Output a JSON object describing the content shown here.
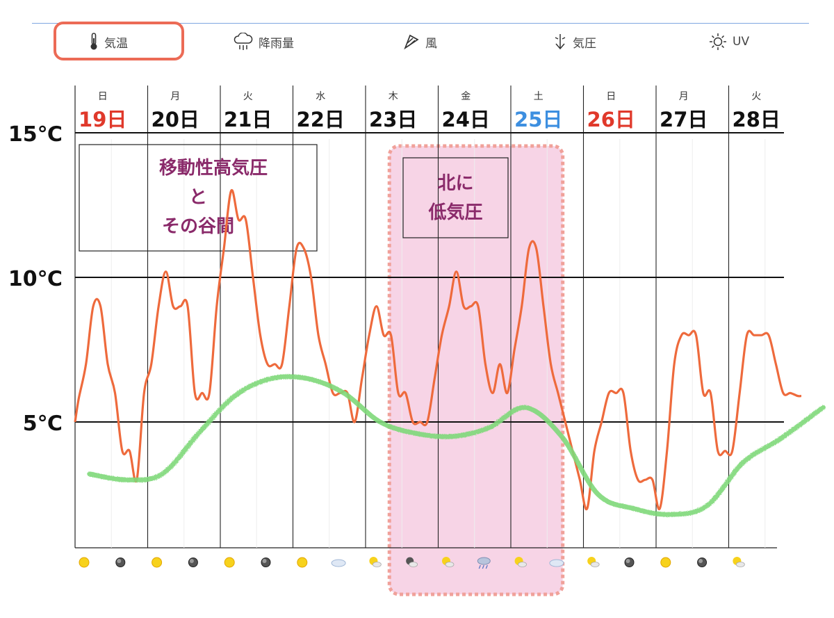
{
  "tabs": [
    {
      "id": "temperature",
      "label": "気温",
      "icon": "thermometer-icon",
      "selected": true
    },
    {
      "id": "rainfall",
      "label": "降雨量",
      "icon": "rain-cloud-icon",
      "selected": false
    },
    {
      "id": "wind",
      "label": "風",
      "icon": "wind-icon",
      "selected": false
    },
    {
      "id": "pressure",
      "label": "気圧",
      "icon": "pressure-arrow-icon",
      "selected": false
    },
    {
      "id": "uv",
      "label": "UV",
      "icon": "sun-icon",
      "selected": false
    }
  ],
  "colors": {
    "highlight": "#ec6b56",
    "temperature_line": "#ee6a3c",
    "trend_line": "#7fd97a",
    "sunday": "#e0392b",
    "saturday": "#3d8fe0",
    "weekday": "#111111",
    "annotation_text": "#8a2a6a",
    "period_fill": "#f7d4e6",
    "period_border": "#f0a19a"
  },
  "chart_data": {
    "type": "line",
    "y_unit": "℃",
    "ylim": [
      0,
      15
    ],
    "y_ticks": [
      {
        "value": 15,
        "label": "15℃"
      },
      {
        "value": 10,
        "label": "10℃"
      },
      {
        "value": 5,
        "label": "5℃"
      }
    ],
    "days": [
      {
        "weekday": "日",
        "date": "19日",
        "kind": "sunday"
      },
      {
        "weekday": "月",
        "date": "20日",
        "kind": "weekday"
      },
      {
        "weekday": "火",
        "date": "21日",
        "kind": "weekday"
      },
      {
        "weekday": "水",
        "date": "22日",
        "kind": "weekday"
      },
      {
        "weekday": "木",
        "date": "23日",
        "kind": "weekday"
      },
      {
        "weekday": "金",
        "date": "24日",
        "kind": "weekday"
      },
      {
        "weekday": "土",
        "date": "25日",
        "kind": "saturday"
      },
      {
        "weekday": "日",
        "date": "26日",
        "kind": "sunday"
      },
      {
        "weekday": "月",
        "date": "27日",
        "kind": "weekday"
      },
      {
        "weekday": "火",
        "date": "28日",
        "kind": "weekday"
      }
    ],
    "series": [
      {
        "key": "temperature",
        "x_day": [
          0,
          0.05,
          0.15,
          0.25,
          0.35,
          0.45,
          0.55,
          0.65,
          0.75,
          0.85,
          0.95,
          1.05,
          1.15,
          1.25,
          1.35,
          1.45,
          1.55,
          1.65,
          1.75,
          1.85,
          1.95,
          2.05,
          2.15,
          2.25,
          2.35,
          2.45,
          2.55,
          2.65,
          2.75,
          2.85,
          2.95,
          3.05,
          3.15,
          3.25,
          3.35,
          3.45,
          3.55,
          3.65,
          3.75,
          3.85,
          3.95,
          4.05,
          4.15,
          4.25,
          4.35,
          4.45,
          4.55,
          4.65,
          4.75,
          4.85,
          4.95,
          5.05,
          5.15,
          5.25,
          5.35,
          5.45,
          5.55,
          5.65,
          5.75,
          5.85,
          5.95,
          6.05,
          6.15,
          6.25,
          6.35,
          6.45,
          6.55,
          6.65,
          6.75,
          6.85,
          6.95,
          7.05,
          7.15,
          7.25,
          7.35,
          7.45,
          7.55,
          7.65,
          7.75,
          7.85,
          7.95,
          8.05,
          8.15,
          8.25,
          8.35,
          8.45,
          8.55,
          8.65,
          8.75,
          8.85,
          8.95,
          9.05,
          9.15,
          9.25,
          9.35,
          9.45,
          9.55,
          9.65,
          9.75,
          9.85,
          9.95,
          10.0
        ],
        "values": [
          5,
          5.8,
          7,
          9,
          9,
          7,
          6,
          4,
          4,
          3,
          6,
          7,
          9,
          10.2,
          9,
          9,
          9,
          6,
          6,
          6,
          9,
          11,
          13,
          12,
          12,
          10,
          8,
          7,
          7,
          7,
          9,
          11,
          11,
          10,
          8,
          7,
          6,
          6,
          6,
          5,
          6.5,
          8,
          9,
          8,
          8,
          6,
          6,
          5,
          5,
          5,
          6.5,
          8,
          9,
          10.2,
          9,
          9,
          9,
          7,
          6,
          7,
          6,
          7.5,
          9,
          11,
          11,
          9,
          7,
          6,
          5,
          4,
          3,
          2,
          4,
          5,
          6,
          6,
          6,
          4,
          3,
          3,
          3,
          2,
          4,
          7,
          8,
          8,
          8,
          6,
          6,
          4,
          4,
          4,
          6,
          8,
          8,
          8,
          8,
          7,
          6,
          6,
          5.9,
          5.9
        ]
      },
      {
        "key": "trend",
        "x_day": [
          0.2,
          0.7,
          1.2,
          1.7,
          2.2,
          2.7,
          3.2,
          3.7,
          4.2,
          4.7,
          5.2,
          5.7,
          6.2,
          6.7,
          7.2,
          7.7,
          8.2,
          8.7,
          9.2,
          9.7,
          10.3
        ],
        "values": [
          3.2,
          3.0,
          3.2,
          4.6,
          5.9,
          6.5,
          6.5,
          6.0,
          5.0,
          4.6,
          4.5,
          4.8,
          5.5,
          4.5,
          2.5,
          2.0,
          1.8,
          2.1,
          3.6,
          4.4,
          5.5
        ]
      }
    ],
    "weather_icons": [
      "sun",
      "moon",
      "sun",
      "moon",
      "sun",
      "moon",
      "sun",
      "cloud",
      "sun-cloud",
      "moon-cloud",
      "sun-cloud",
      "rain",
      "sun-cloud",
      "cloud",
      "sun-cloud",
      "moon",
      "sun",
      "moon",
      "sun-cloud"
    ],
    "annotations": [
      {
        "key": "high-pressure",
        "lines": [
          "移動性高気圧",
          "と",
          "その谷間"
        ]
      },
      {
        "key": "low-pressure",
        "lines": [
          "北に",
          "低気圧"
        ]
      }
    ],
    "period_highlight": {
      "from_day": 4.5,
      "to_day": 6.6
    }
  }
}
